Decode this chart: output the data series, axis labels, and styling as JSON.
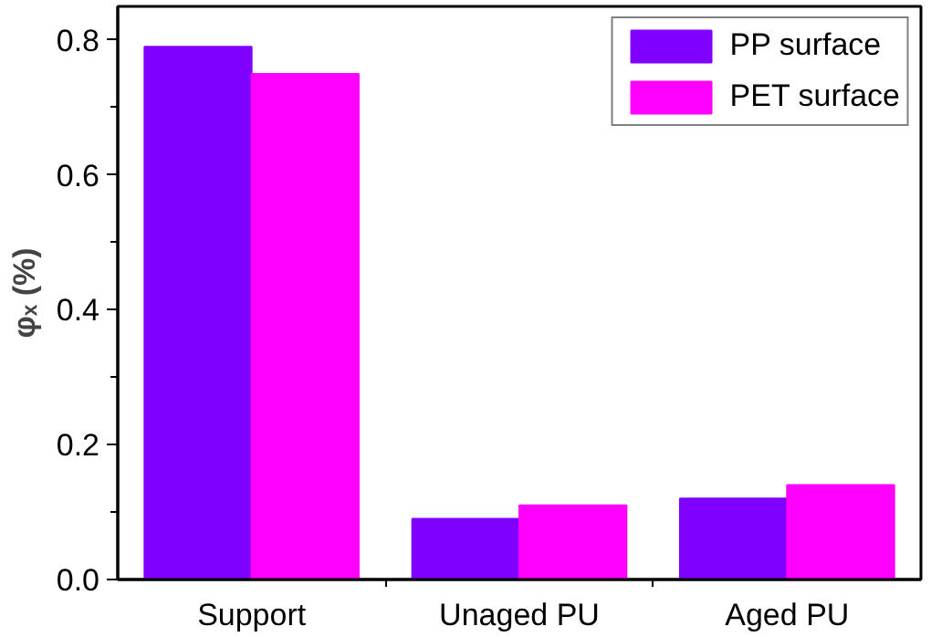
{
  "chart_data": {
    "type": "bar",
    "ylabel": "φₓ (%)",
    "categories": [
      "Support",
      "Unaged PU",
      "Aged PU"
    ],
    "series": [
      {
        "name": "PP surface",
        "color": "#8000ff",
        "values": [
          0.79,
          0.09,
          0.12
        ]
      },
      {
        "name": "PET surface",
        "color": "#ff00ff",
        "values": [
          0.75,
          0.11,
          0.14
        ]
      }
    ],
    "ylim": [
      0,
      0.85
    ],
    "yticks": [
      {
        "value": 0,
        "label": "0.0"
      },
      {
        "value": 0.2,
        "label": "0.2"
      },
      {
        "value": 0.4,
        "label": "0.4"
      },
      {
        "value": 0.6,
        "label": "0.6"
      },
      {
        "value": 0.8,
        "label": "0.8"
      }
    ],
    "grid": false,
    "legend": "top right"
  }
}
